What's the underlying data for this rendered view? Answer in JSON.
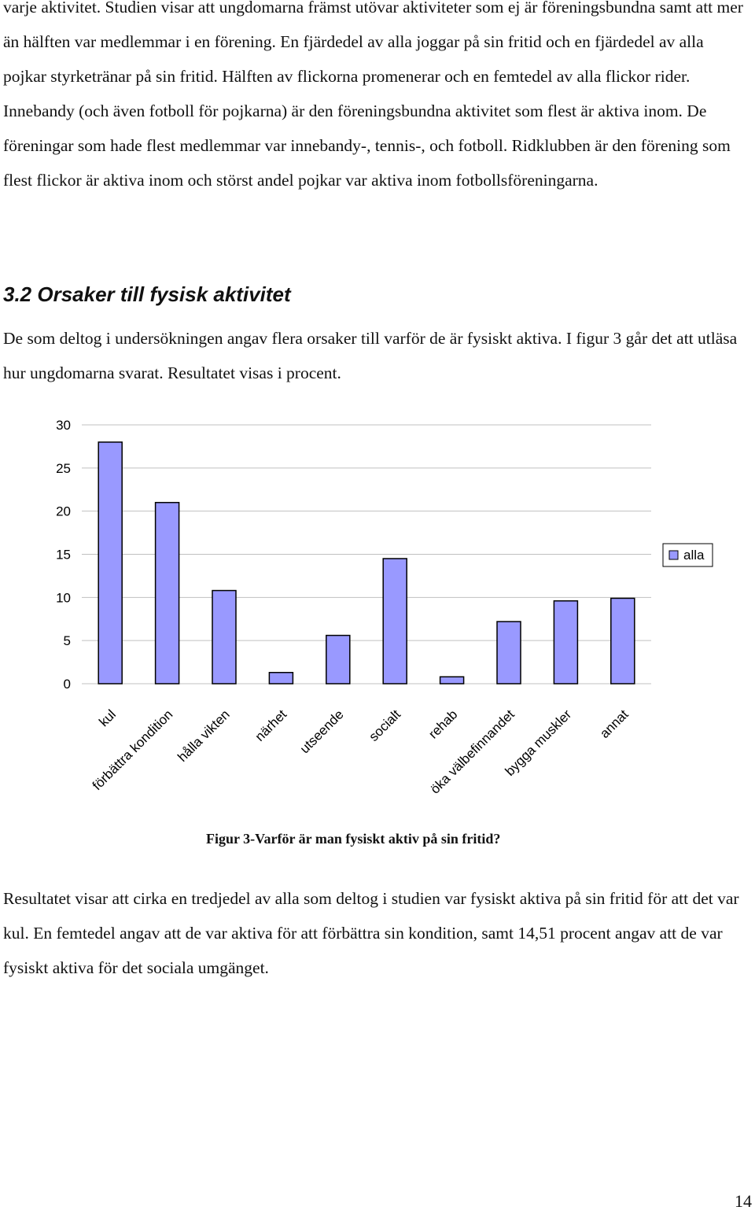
{
  "paragraphs": {
    "p1": "varje aktivitet. Studien visar att ungdomarna främst utövar aktiviteter som ej är föreningsbundna samt att mer än hälften var medlemmar i en förening. En fjärdedel av alla joggar på sin fritid och en fjärdedel av alla pojkar styrketränar på sin fritid. Hälften av flickorna promenerar och en femtedel av alla flickor rider. Innebandy (och även fotboll för pojkarna) är den föreningsbundna aktivitet som flest är aktiva inom. De föreningar som hade flest medlemmar var innebandy-, tennis-, och fotboll. Ridklubben är den förening som flest flickor är aktiva inom och störst andel pojkar var aktiva inom fotbollsföreningarna.",
    "section_heading": "3.2 Orsaker till fysisk aktivitet",
    "p2": "De som deltog i undersökningen angav flera orsaker till varför de är fysiskt aktiva. I figur 3 går det att utläsa hur ungdomarna svarat. Resultatet visas i procent.",
    "p3": "Resultatet visar att cirka en tredjedel av alla som deltog i studien var fysiskt aktiva på sin fritid för att det var kul. En femtedel angav att de var aktiva för att förbättra sin kondition, samt 14,51 procent angav att de var fysiskt aktiva för det sociala umgänget."
  },
  "figure_caption": "Figur 3-Varför är man fysiskt aktiv på sin fritid?",
  "page_number": "14",
  "chart_data": {
    "type": "bar",
    "categories": [
      "kul",
      "förbättra kondition",
      "hålla vikten",
      "närhet",
      "utseende",
      "socialt",
      "rehab",
      "öka välbefinnandet",
      "bygga muskler",
      "annat"
    ],
    "series": [
      {
        "name": "alla",
        "values": [
          28,
          21,
          10.8,
          1.3,
          5.6,
          14.5,
          0.8,
          7.2,
          9.6,
          9.9
        ]
      }
    ],
    "ylim": [
      0,
      30
    ],
    "yticks": [
      "0",
      "5",
      "10",
      "15",
      "20",
      "25",
      "30"
    ],
    "grid": true,
    "legend": "right",
    "colors": {
      "bar": "#9999ff",
      "bar_border": "#000000",
      "grid": "#c0c0c0"
    }
  }
}
